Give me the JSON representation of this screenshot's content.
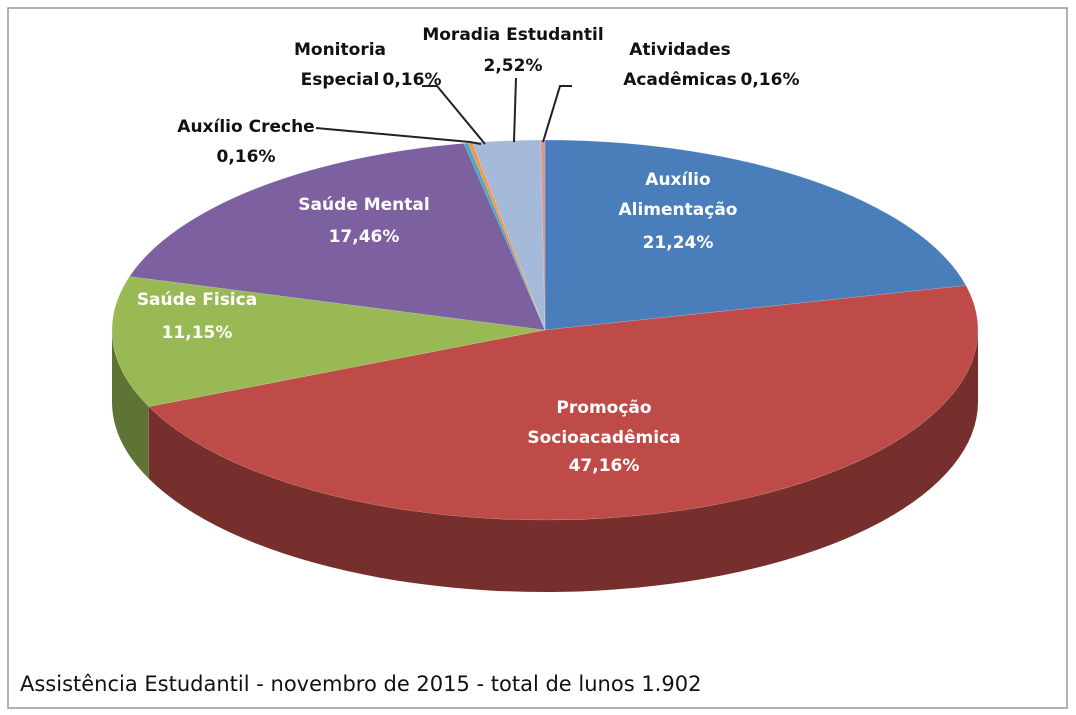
{
  "chart_data": {
    "type": "pie",
    "title": "Assistência Estudantil - novembro de 2015 - total de lunos 1.902",
    "categories": [
      "Auxílio Alimentação",
      "Promoção Socioacadêmica",
      "Saúde Fisica",
      "Saúde Mental",
      "Auxílio Creche",
      "Monitoria Especial",
      "Moradia Estudantil",
      "Atividades Acadêmicas"
    ],
    "values": [
      21.24,
      47.16,
      11.15,
      17.46,
      0.16,
      0.16,
      2.52,
      0.16
    ],
    "value_labels": [
      "21,24%",
      "47,16%",
      "11,15%",
      "17,46%",
      "0,16%",
      "0,16%",
      "2,52%",
      "0,16%"
    ],
    "colors": [
      "#4a7ebb",
      "#be4b48",
      "#98b954",
      "#7d60a0",
      "#46aac5",
      "#f79646",
      "#a5b9d9",
      "#d99694"
    ]
  }
}
